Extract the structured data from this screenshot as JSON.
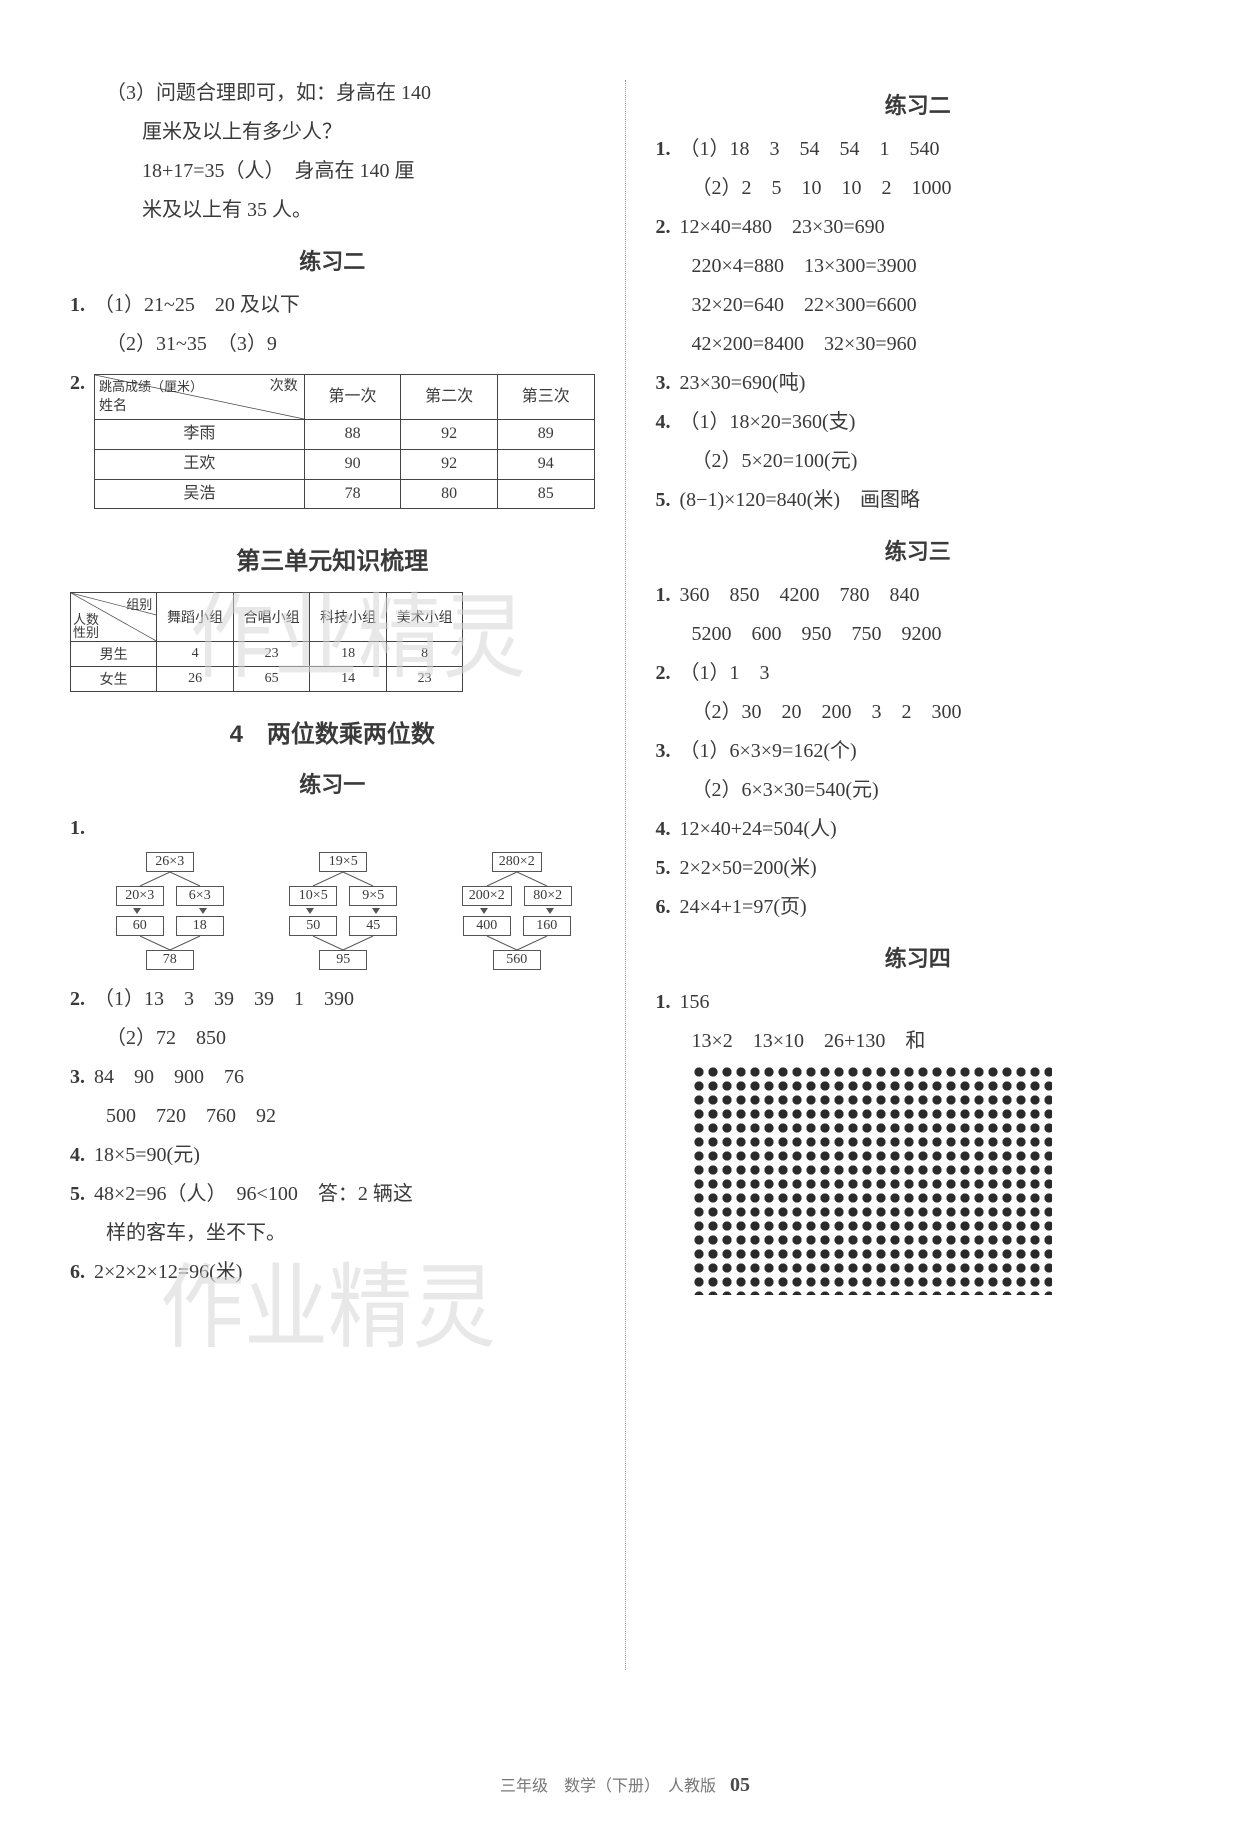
{
  "watermark": "作业精灵",
  "footer": {
    "text": "三年级　数学（下册）　人教版",
    "page": "05"
  },
  "left": {
    "q3": {
      "l1": "（3）问题合理即可，如：身高在 140",
      "l2": "厘米及以上有多少人？",
      "l3": "18+17=35（人）　身高在 140 厘",
      "l4": "米及以上有 35 人。"
    },
    "ex2": {
      "title": "练习二",
      "q1l1": "（1）21~25　20 及以下",
      "q1l2": "（2）31~35　（3）9",
      "q2label": "2.",
      "table": {
        "diag_a": "次数",
        "diag_b": "姓名",
        "header_left": "跳高成绩（厘米）",
        "cols": [
          "第一次",
          "第二次",
          "第三次"
        ],
        "rows": [
          {
            "name": "李雨",
            "v": [
              "88",
              "92",
              "89"
            ]
          },
          {
            "name": "王欢",
            "v": [
              "90",
              "92",
              "94"
            ]
          },
          {
            "name": "吴浩",
            "v": [
              "78",
              "80",
              "85"
            ]
          }
        ]
      }
    },
    "unit3": {
      "title": "第三单元知识梳理",
      "table": {
        "diag_top": "组别",
        "diag_mid": "人数",
        "diag_bot": "性别",
        "cols": [
          "舞蹈小组",
          "合唱小组",
          "科技小组",
          "美术小组"
        ],
        "rows": [
          {
            "name": "男生",
            "v": [
              "4",
              "23",
              "18",
              "8"
            ]
          },
          {
            "name": "女生",
            "v": [
              "26",
              "65",
              "14",
              "23"
            ]
          }
        ]
      }
    },
    "sec4": {
      "title": "4　两位数乘两位数",
      "ex1": {
        "title": "练习一",
        "q1label": "1.",
        "trees": [
          {
            "top": "26×3",
            "mid": [
              "20×3",
              "6×3"
            ],
            "mid2": [
              "60",
              "18"
            ],
            "bot": "78"
          },
          {
            "top": "19×5",
            "mid": [
              "10×5",
              "9×5"
            ],
            "mid2": [
              "50",
              "45"
            ],
            "bot": "95"
          },
          {
            "top": "280×2",
            "mid": [
              "200×2",
              "80×2"
            ],
            "mid2": [
              "400",
              "160"
            ],
            "bot": "560"
          }
        ],
        "q2": {
          "num": "2.",
          "l1": "（1）13　3　39　39　1　390",
          "l2": "（2）72　850"
        },
        "q3": {
          "num": "3.",
          "l1": "84　90　900　76",
          "l2": "500　720　760　92"
        },
        "q4": {
          "num": "4.",
          "l1": "18×5=90(元)"
        },
        "q5": {
          "num": "5.",
          "l1": "48×2=96（人）　96<100　答：2 辆这",
          "l2": "样的客车，坐不下。"
        },
        "q6": {
          "num": "6.",
          "l1": "2×2×2×12=96(米)"
        }
      }
    }
  },
  "right": {
    "ex2": {
      "title": "练习二",
      "q1": {
        "num": "1.",
        "l1": "（1）18　3　54　54　1　540",
        "l2": "（2）2　5　10　10　2　1000"
      },
      "q2": {
        "num": "2.",
        "l1": "12×40=480　23×30=690",
        "l2": "220×4=880　13×300=3900",
        "l3": "32×20=640　22×300=6600",
        "l4": "42×200=8400　32×30=960"
      },
      "q3": {
        "num": "3.",
        "l1": "23×30=690(吨)"
      },
      "q4": {
        "num": "4.",
        "l1": "（1）18×20=360(支)",
        "l2": "（2）5×20=100(元)"
      },
      "q5": {
        "num": "5.",
        "l1": "(8−1)×120=840(米)　画图略"
      }
    },
    "ex3": {
      "title": "练习三",
      "q1": {
        "num": "1.",
        "l1": "360　850　4200　780　840",
        "l2": "5200　600　950　750　9200"
      },
      "q2": {
        "num": "2.",
        "l1": "（1）1　3",
        "l2": "（2）30　20　200　3　2　300"
      },
      "q3": {
        "num": "3.",
        "l1": "（1）6×3×9=162(个)",
        "l2": "（2）6×3×30=540(元)"
      },
      "q4": {
        "num": "4.",
        "l1": "12×40+24=504(人)"
      },
      "q5": {
        "num": "5.",
        "l1": "2×2×50=200(米)"
      },
      "q6": {
        "num": "6.",
        "l1": "24×4+1=97(页)"
      }
    },
    "ex4": {
      "title": "练习四",
      "q1": {
        "num": "1.",
        "l1": "156",
        "l2": "13×2　13×10　26+130　和"
      }
    }
  }
}
